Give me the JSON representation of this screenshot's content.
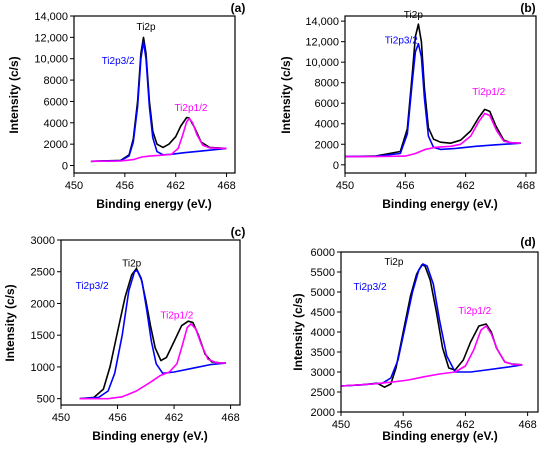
{
  "chart_data": [
    {
      "type": "line",
      "panel_label": "(a)",
      "xlabel": "Binding energy (eV.)",
      "ylabel": "Intensity (c/s)",
      "xlim": [
        450,
        469
      ],
      "ylim": [
        -700,
        14000
      ],
      "x_ticks": [
        "450",
        "456",
        "462",
        "468"
      ],
      "y_ticks": [
        "0",
        "2000",
        "4000",
        "6000",
        "8000",
        "10,000",
        "12,000",
        "14,000"
      ],
      "x_tick_values": [
        450,
        456,
        462,
        468
      ],
      "y_tick_values": [
        0,
        2000,
        4000,
        6000,
        8000,
        10000,
        12000,
        14000
      ],
      "annotations": [
        {
          "text": "Ti2p",
          "color": "#000000",
          "x": 458.5,
          "y": 12700
        },
        {
          "text": "Ti2p3/2",
          "color": "#0000ff",
          "x": 455.2,
          "y": 9500
        },
        {
          "text": "Ti2p1/2",
          "color": "#ff00ff",
          "x": 463.8,
          "y": 5100
        }
      ],
      "series": [
        {
          "color": "#000000",
          "x": [
            452,
            455.5,
            456.5,
            457,
            457.5,
            457.9,
            458.2,
            458.5,
            458.9,
            459.3,
            459.8,
            460.5,
            461.2,
            462,
            462.6,
            463.3,
            463.6,
            464.2,
            465,
            466,
            467,
            468
          ],
          "y": [
            400,
            480,
            1000,
            2500,
            6000,
            10500,
            12000,
            10500,
            6000,
            3200,
            2000,
            1700,
            2000,
            2700,
            3700,
            4500,
            4450,
            3600,
            2200,
            1700,
            1650,
            1600
          ]
        },
        {
          "color": "#0000ff",
          "x": [
            452,
            455.5,
            456.5,
            457,
            457.5,
            457.9,
            458.2,
            458.5,
            458.9,
            459.3,
            459.8,
            460.5,
            461.5,
            463,
            465,
            468
          ],
          "y": [
            400,
            450,
            900,
            2200,
            5500,
            10000,
            11600,
            10000,
            5500,
            2600,
            1300,
            1000,
            1050,
            1200,
            1350,
            1600
          ]
        },
        {
          "color": "#ff00ff",
          "x": [
            452,
            455.5,
            457,
            458,
            459,
            460,
            461.5,
            462.3,
            462.8,
            463.3,
            463.6,
            464,
            464.5,
            465.2,
            466,
            467,
            468
          ],
          "y": [
            400,
            420,
            550,
            800,
            900,
            950,
            1050,
            1600,
            2800,
            4100,
            4400,
            4000,
            2900,
            1900,
            1650,
            1620,
            1600
          ]
        }
      ]
    },
    {
      "type": "line",
      "panel_label": "(b)",
      "xlabel": "Binding energy (eV.)",
      "ylabel": "Intensity (c/s)",
      "xlim": [
        450,
        469
      ],
      "ylim": [
        -800,
        14500
      ],
      "x_ticks": [
        "450",
        "456",
        "462",
        "468"
      ],
      "y_ticks": [
        "0",
        "2000",
        "4000",
        "6000",
        "8000",
        "10,000",
        "12,000",
        "14,000"
      ],
      "x_tick_values": [
        450,
        456,
        462,
        468
      ],
      "y_tick_values": [
        0,
        2000,
        4000,
        6000,
        8000,
        10000,
        12000,
        14000
      ],
      "annotations": [
        {
          "text": "Ti2p",
          "color": "#000000",
          "x": 456.8,
          "y": 14300
        },
        {
          "text": "Ti2p3/2",
          "color": "#0000ff",
          "x": 455.6,
          "y": 11800
        },
        {
          "text": "Ti2p1/2",
          "color": "#ff00ff",
          "x": 464.3,
          "y": 6800
        }
      ],
      "series": [
        {
          "color": "#000000",
          "x": [
            450,
            453,
            455.5,
            456.2,
            456.7,
            457,
            457.3,
            457.6,
            457.9,
            458.3,
            458.8,
            459.5,
            460.5,
            461.5,
            462.5,
            463.3,
            463.9,
            464.4,
            465,
            465.8,
            466.5,
            467.5
          ],
          "y": [
            800,
            850,
            1300,
            3500,
            9000,
            12500,
            13700,
            12000,
            7500,
            3600,
            2500,
            2200,
            2100,
            2400,
            3300,
            4600,
            5400,
            5200,
            3800,
            2400,
            2150,
            2100
          ]
        },
        {
          "color": "#0000ff",
          "x": [
            450,
            453,
            455.5,
            456.2,
            456.7,
            457,
            457.3,
            457.6,
            457.9,
            458.3,
            458.8,
            459.5,
            461,
            463,
            465,
            467.5
          ],
          "y": [
            800,
            830,
            1100,
            3000,
            8200,
            11000,
            11800,
            10500,
            6500,
            2800,
            1700,
            1500,
            1600,
            1800,
            1950,
            2100
          ]
        },
        {
          "color": "#ff00ff",
          "x": [
            450,
            453,
            456,
            457,
            458,
            459,
            460.5,
            461.5,
            462.5,
            463.3,
            463.9,
            464.4,
            465.1,
            465.8,
            466.5,
            467.5
          ],
          "y": [
            800,
            800,
            850,
            1100,
            1500,
            1700,
            1800,
            2000,
            2800,
            4200,
            5000,
            4800,
            3300,
            2300,
            2150,
            2100
          ]
        }
      ]
    },
    {
      "type": "line",
      "panel_label": "(c)",
      "xlabel": "Binding energy (eV.)",
      "ylabel": "Intensity (c/s)",
      "xlim": [
        450,
        469
      ],
      "ylim": [
        400,
        3000
      ],
      "x_ticks": [
        "450",
        "456",
        "462",
        "468"
      ],
      "y_ticks": [
        "500",
        "1000",
        "1500",
        "2000",
        "2500",
        "3000"
      ],
      "x_tick_values": [
        450,
        456,
        462,
        468
      ],
      "y_tick_values": [
        500,
        1000,
        1500,
        2000,
        2500,
        3000
      ],
      "annotations": [
        {
          "text": "Ti2p",
          "color": "#000000",
          "x": 457.5,
          "y": 2580
        },
        {
          "text": "Ti2p3/2",
          "color": "#0000ff",
          "x": 453.3,
          "y": 2230
        },
        {
          "text": "Ti2p1/2",
          "color": "#ff00ff",
          "x": 462.3,
          "y": 1760
        }
      ],
      "series": [
        {
          "color": "#000000",
          "x": [
            452,
            453.5,
            454.5,
            455.2,
            456,
            456.8,
            457.5,
            458,
            458.5,
            459,
            459.5,
            460,
            460.6,
            461.2,
            462,
            462.8,
            463.5,
            464,
            464.6,
            465.3,
            466,
            467,
            467.5
          ],
          "y": [
            500,
            520,
            650,
            1000,
            1550,
            2100,
            2450,
            2550,
            2400,
            2050,
            1650,
            1300,
            1100,
            1150,
            1400,
            1650,
            1720,
            1700,
            1500,
            1200,
            1080,
            1060,
            1060
          ]
        },
        {
          "color": "#0000ff",
          "x": [
            452,
            454,
            455,
            455.7,
            456.5,
            457.2,
            457.8,
            458.1,
            458.6,
            459.1,
            459.6,
            460.1,
            460.8,
            462,
            464,
            466,
            467.5
          ],
          "y": [
            500,
            520,
            620,
            900,
            1500,
            2200,
            2500,
            2520,
            2350,
            1900,
            1400,
            1050,
            900,
            920,
            980,
            1040,
            1060
          ]
        },
        {
          "color": "#ff00ff",
          "x": [
            452,
            455,
            456.5,
            458,
            459.5,
            460.5,
            461.5,
            462.3,
            462.9,
            463.4,
            463.8,
            464.3,
            464.9,
            465.6,
            466.5,
            467.5
          ],
          "y": [
            500,
            500,
            530,
            620,
            760,
            860,
            920,
            1050,
            1350,
            1620,
            1680,
            1600,
            1350,
            1120,
            1065,
            1060
          ]
        }
      ]
    },
    {
      "type": "line",
      "panel_label": "(d)",
      "xlabel": "Binding energy (eV.)",
      "ylabel": "Intensity (c/s)",
      "xlim": [
        450,
        469
      ],
      "ylim": [
        2000,
        6000
      ],
      "x_ticks": [
        "450",
        "456",
        "462",
        "468"
      ],
      "y_ticks": [
        "2000",
        "2500",
        "3000",
        "3500",
        "4000",
        "4500",
        "5000",
        "5500",
        "6000"
      ],
      "x_tick_values": [
        450,
        456,
        462,
        468
      ],
      "y_tick_values": [
        2000,
        2500,
        3000,
        3500,
        4000,
        4500,
        5000,
        5500,
        6000
      ],
      "annotations": [
        {
          "text": "Ti2p",
          "color": "#000000",
          "x": 455.1,
          "y": 5680
        },
        {
          "text": "Ti2p3/2",
          "color": "#0000ff",
          "x": 452.8,
          "y": 5050
        },
        {
          "text": "Ti2p1/2",
          "color": "#ff00ff",
          "x": 462.9,
          "y": 4450
        }
      ],
      "series": [
        {
          "color": "#000000",
          "x": [
            450,
            452,
            453.5,
            454.2,
            454.8,
            455.3,
            456,
            456.7,
            457.3,
            457.8,
            458.1,
            458.6,
            459.2,
            459.8,
            460.4,
            461,
            461.8,
            462.5,
            463.3,
            464,
            464.5,
            465,
            465.8,
            466.5,
            467.5
          ],
          "y": [
            2650,
            2680,
            2720,
            2620,
            2700,
            3100,
            4000,
            4900,
            5450,
            5680,
            5650,
            5300,
            4500,
            3600,
            3100,
            3050,
            3300,
            3750,
            4150,
            4200,
            4000,
            3600,
            3250,
            3200,
            3180
          ]
        },
        {
          "color": "#0000ff",
          "x": [
            450,
            452,
            454,
            454.8,
            455.5,
            456.2,
            456.9,
            457.5,
            457.9,
            458.3,
            458.9,
            459.5,
            460.2,
            461,
            462.5,
            464,
            466,
            467.5
          ],
          "y": [
            2650,
            2680,
            2720,
            2850,
            3300,
            4150,
            5000,
            5550,
            5700,
            5650,
            5200,
            4300,
            3400,
            3000,
            3000,
            3050,
            3120,
            3180
          ]
        },
        {
          "color": "#ff00ff",
          "x": [
            450,
            453,
            455,
            456.5,
            458,
            459.5,
            461,
            462,
            462.8,
            463.5,
            464,
            464.5,
            465.1,
            465.8,
            466.6,
            467.5
          ],
          "y": [
            2650,
            2700,
            2750,
            2800,
            2880,
            2950,
            3000,
            3150,
            3550,
            4050,
            4150,
            3950,
            3550,
            3250,
            3190,
            3180
          ]
        }
      ]
    }
  ]
}
